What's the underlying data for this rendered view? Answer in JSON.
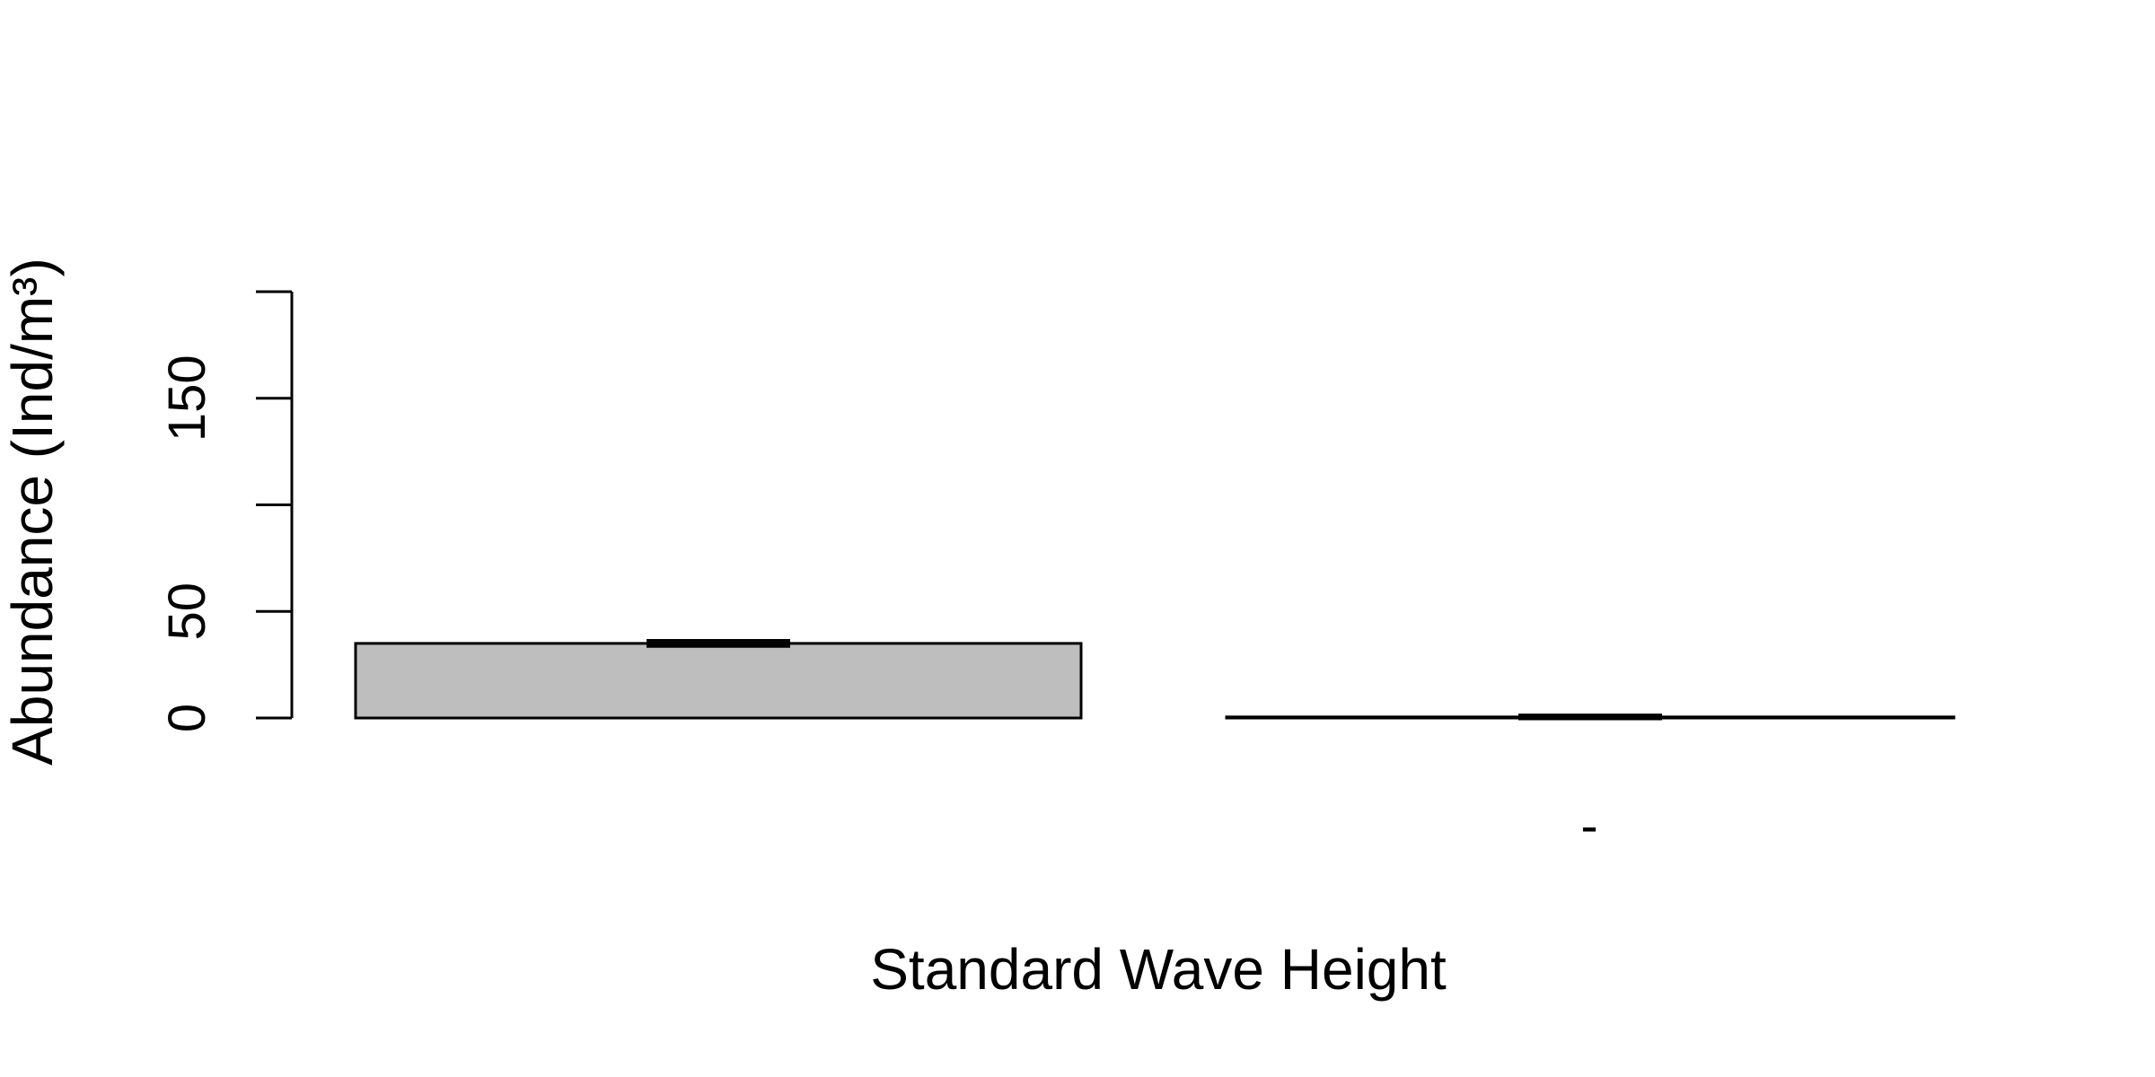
{
  "chart_data": {
    "type": "bar",
    "categories": [
      "",
      "-"
    ],
    "values": [
      35,
      0.5
    ],
    "errors": [
      0.8,
      0.3
    ],
    "xlabel": "Standard Wave Height",
    "ylabel": "Abundance (Ind/m³)",
    "ylim": [
      0,
      200
    ],
    "yticks": [
      0,
      50,
      100,
      150,
      200
    ],
    "ytick_labels": [
      "0",
      "50",
      "",
      "150",
      ""
    ],
    "bar_color": "#bebebe",
    "grid": false
  }
}
